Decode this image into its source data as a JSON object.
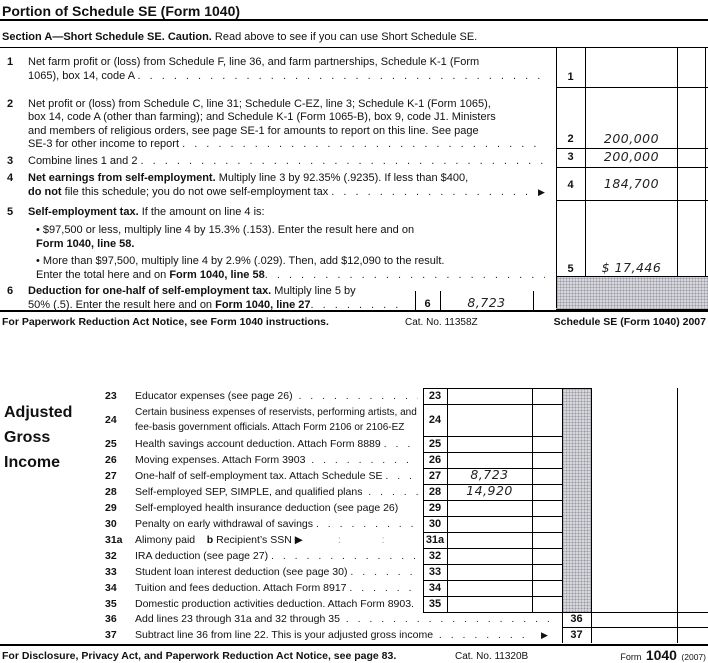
{
  "dots": ". . . . . . . . . . . . . . . . . . . . . . . . . . . . . . . . . . . . . . . . . . . . . . .",
  "header": {
    "title": "Portion of Schedule SE (Form 1040)",
    "section_bold": "Section A—Short Schedule SE. Caution.",
    "section_rest": " Read above to see if you can use Short Schedule SE."
  },
  "se": {
    "n1": {
      "num": "1",
      "l1": "Net farm profit or (loss) from Schedule F, line 36, and farm partnerships, Schedule K-1 (Form",
      "l2": "1065), box 14, code A "
    },
    "n2": {
      "num": "2",
      "l1": "Net profit or (loss) from Schedule C, line 31; Schedule C-EZ, line 3; Schedule K-1 (Form 1065),",
      "l2": "box 14, code A (other than farming); and Schedule K-1 (Form 1065-B), box 9, code J1. Ministers",
      "l3": "and members of religious orders, see page SE-1 for amounts to report on this line. See page",
      "l4": "SE-3 for other income to report "
    },
    "n3": {
      "num": "3",
      "l1": "Combine lines 1 and 2 "
    },
    "n4": {
      "num": "4",
      "l1b": "Net earnings from self-employment.",
      "l1t": " Multiply line 3 by 92.35% (.9235). If less than $400,",
      "l2b": "do not",
      "l2t": " file this schedule; you do not owe self-employment tax ",
      "arrow": "▶"
    },
    "n5": {
      "num": "5",
      "hb": "Self-employment tax.",
      "ht": " If the amount on line 4 is:",
      "b1l1": "• $97,500 or less, multiply line 4 by 15.3% (.153). Enter the result here and on",
      "b1l2": "Form 1040, line 58.",
      "b2l1": "• More than $97,500, multiply line 4 by 2.9% (.029). Then, add $12,090 to the result.",
      "b2l2t": "Enter the total here and on ",
      "b2l2b": "Form 1040, line 58",
      "b2l2d": " "
    },
    "n6": {
      "num": "6",
      "l1b": "Deduction for one-half of self-employment tax.",
      "l1t": " Multiply line 5 by",
      "l2t": "50% (.5). Enter the result here and on ",
      "l2b": "Form 1040, line 27",
      "box_num": "6",
      "box_value": "8,723"
    },
    "entries": {
      "e1": {
        "num": "1",
        "value": ""
      },
      "e2": {
        "num": "2",
        "value": "200,000"
      },
      "e3": {
        "num": "3",
        "value": "200,000"
      },
      "e4": {
        "num": "4",
        "value": "184,700"
      },
      "e5": {
        "num": "5",
        "value": "$ 17,446"
      }
    },
    "footer": {
      "left": "For Paperwork Reduction Act Notice, see Form 1040 instructions.",
      "cat": "Cat. No. 11358Z",
      "right": "Schedule SE (Form 1040) 2007"
    }
  },
  "f1040": {
    "agi1": "Adjusted",
    "agi2": "Gross",
    "agi3": "Income",
    "rows": [
      {
        "id": "23",
        "segments": [
          {
            "t": "Educator expenses (see page 26)  "
          }
        ],
        "dots": true,
        "value": ""
      },
      {
        "id": "24",
        "segments": [
          {
            "t": "Certain business expenses of reservists, performing artists, and"
          }
        ],
        "line2": "fee-basis government officials. Attach Form 2106 or 2106-EZ",
        "value": ""
      },
      {
        "id": "25",
        "segments": [
          {
            "t": "Health savings account deduction. Attach Form 8889 "
          }
        ],
        "dots": true,
        "value": ""
      },
      {
        "id": "26",
        "segments": [
          {
            "t": "Moving expenses. Attach Form 3903  "
          }
        ],
        "dots": true,
        "value": ""
      },
      {
        "id": "27",
        "segments": [
          {
            "t": "One-half of self-employment tax. Attach Schedule SE "
          }
        ],
        "dots": true,
        "value": "8,723"
      },
      {
        "id": "28",
        "segments": [
          {
            "t": "Self-employed SEP, SIMPLE, and qualified plans  "
          }
        ],
        "dots": true,
        "value": "14,920"
      },
      {
        "id": "29",
        "segments": [
          {
            "t": "Self-employed health insurance deduction (see page 26)"
          }
        ],
        "value": ""
      },
      {
        "id": "30",
        "segments": [
          {
            "t": "Penalty on early withdrawal of savings "
          }
        ],
        "dots": true,
        "value": ""
      },
      {
        "id": "31a",
        "segments": [
          {
            "t": "Alimony paid    "
          },
          {
            "b": "b"
          },
          {
            "t": " Recipient’s SSN ▶"
          },
          {
            "faint": "            :              :"
          }
        ],
        "value": ""
      },
      {
        "id": "32",
        "segments": [
          {
            "t": "IRA deduction (see page 27) "
          }
        ],
        "dots": true,
        "value": ""
      },
      {
        "id": "33",
        "segments": [
          {
            "t": "Student loan interest deduction (see page 30) "
          }
        ],
        "dots": true,
        "value": ""
      },
      {
        "id": "34",
        "segments": [
          {
            "t": "Tuition and fees deduction. Attach Form 8917 "
          }
        ],
        "dots": true,
        "value": ""
      },
      {
        "id": "35",
        "segments": [
          {
            "t": "Domestic production activities deduction. Attach Form 8903."
          }
        ],
        "value": ""
      },
      {
        "id": "36",
        "outer": true,
        "segments": [
          {
            "t": "Add lines 23 through 31a and 32 through 35  "
          }
        ],
        "dots": true,
        "value": ""
      },
      {
        "id": "37",
        "outer": true,
        "segments": [
          {
            "t": "Subtract line 36 from line 22. This is your adjusted gross income  "
          }
        ],
        "dots": true,
        "arrow": "▶",
        "value": ""
      }
    ],
    "footer": {
      "left": "For Disclosure, Privacy Act, and Paperwork Reduction Act Notice, see page 83.",
      "cat": "Cat. No. 11320B",
      "form_word": "Form",
      "form_num": "1040",
      "form_year": "(2007)"
    }
  }
}
